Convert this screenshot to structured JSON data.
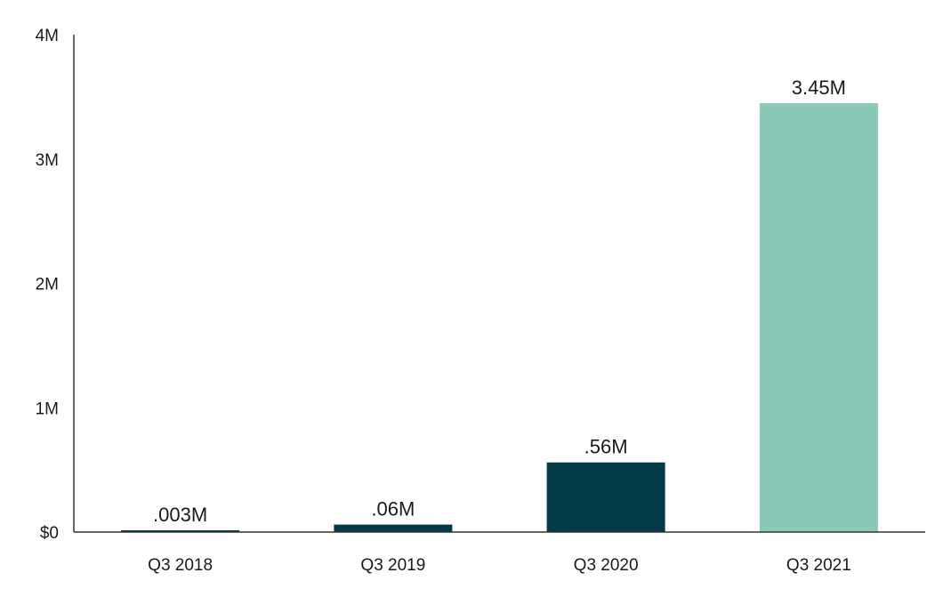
{
  "chart_data": {
    "type": "bar",
    "title": "",
    "xlabel": "",
    "ylabel": "",
    "categories": [
      "Q3 2018",
      "Q3 2019",
      "Q3 2020",
      "Q3 2021"
    ],
    "values": [
      0.003,
      0.06,
      0.56,
      3.45
    ],
    "data_labels": [
      ".003M",
      ".06M",
      ".56M",
      "3.45M"
    ],
    "ylim": [
      0,
      4
    ],
    "yticks": [
      0,
      1,
      2,
      3,
      4
    ],
    "ytick_labels": [
      "$0",
      "1M",
      "2M",
      "3M",
      "4M"
    ],
    "grid": false,
    "bar_colors": [
      "#033a48",
      "#033a48",
      "#033a48",
      "#8cc8b8"
    ],
    "axis_color": "#333333"
  }
}
